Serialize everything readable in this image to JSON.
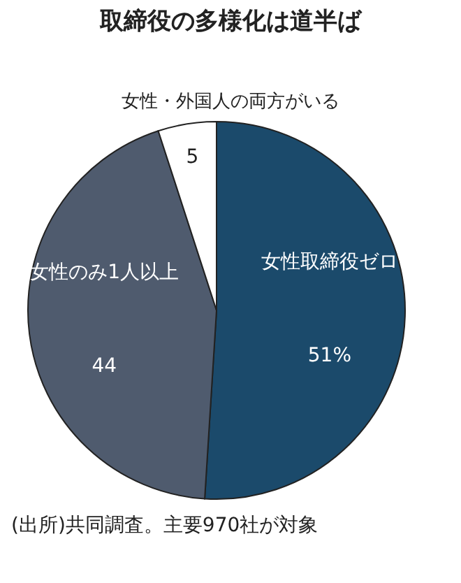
{
  "chart_data": {
    "type": "pie",
    "title": "取締役の多様化は道半ば",
    "categories": [
      "女性取締役ゼロ",
      "女性のみ1人以上",
      "女性・外国人の両方がいる"
    ],
    "values": [
      51,
      44,
      5
    ],
    "colors": [
      "#1b4a6b",
      "#4f5b6e",
      "#ffffff"
    ],
    "value_labels": [
      "51%",
      "44",
      "5"
    ],
    "annotations": [
      "(出所)共同調査。主要970社が対象"
    ]
  }
}
